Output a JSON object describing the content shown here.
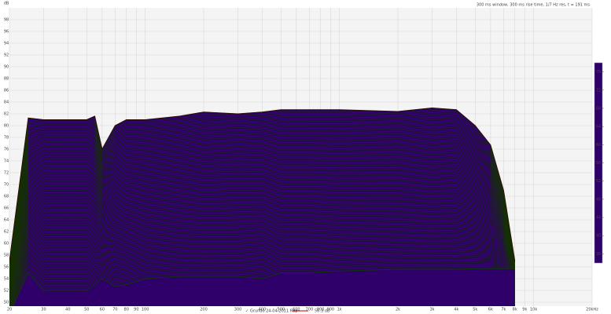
{
  "chart_data": {
    "type": "waterfall",
    "note_text": "300 ms window, 300 ms rise time, 1/7 Hz res, t = 191 ms",
    "y_label": "dB",
    "x": [
      20,
      25,
      30,
      40,
      50,
      55,
      60,
      70,
      80,
      100,
      150,
      200,
      300,
      400,
      500,
      700,
      1000,
      2000,
      3000,
      4000,
      5000,
      6000,
      7000,
      8000
    ],
    "series": [
      {
        "name": "Grundo 24-04-2011 Rbp",
        "level_label": "56.3 dB",
        "color": "#c00000",
        "values": [
          57,
          81.3,
          81,
          81,
          81,
          81.6,
          76,
          80,
          81,
          81,
          81.6,
          82.3,
          82,
          82.3,
          82.7,
          82.7,
          82.7,
          82.4,
          83,
          82.7,
          80,
          76.7,
          69,
          57
        ],
        "end_values": [
          48,
          55,
          52,
          52,
          52,
          53,
          54,
          52.7,
          53,
          54,
          54.4,
          54.4,
          54.4,
          54,
          55,
          55,
          55.3,
          55.6,
          55.6,
          55.6,
          55.7,
          55.7,
          55.7,
          55.7
        ]
      }
    ],
    "xlim": [
      20,
      20000
    ],
    "xscale": "log",
    "xticks": [
      20,
      30,
      40,
      50,
      60,
      70,
      80,
      90,
      100,
      200,
      300,
      400,
      500,
      600,
      700,
      800,
      900,
      {
        "value": 1000,
        "label": "1k"
      },
      {
        "value": 2000,
        "label": "2k"
      },
      {
        "value": 3000,
        "label": "3k"
      },
      {
        "value": 4000,
        "label": "4k"
      },
      {
        "value": 5000,
        "label": "5k"
      },
      {
        "value": 6000,
        "label": "6k"
      },
      {
        "value": 7000,
        "label": "7k"
      },
      {
        "value": 8000,
        "label": "8k"
      },
      {
        "value": 9000,
        "label": "9k"
      },
      {
        "value": 10000,
        "label": "10k"
      },
      {
        "value": 20000,
        "label": "20kHz"
      }
    ],
    "ylim": [
      50,
      100
    ],
    "yticks": [
      50,
      52,
      54,
      56,
      58,
      60,
      62,
      64,
      66,
      68,
      70,
      72,
      74,
      76,
      78,
      80,
      82,
      84,
      86,
      88,
      90,
      92,
      94,
      96,
      98
    ],
    "grid": true,
    "clim": [
      34,
      78
    ],
    "cticks": [
      36,
      40,
      44,
      48,
      52,
      56,
      60,
      64,
      68,
      72,
      76
    ],
    "colormap": [
      {
        "value": 34,
        "color": "#30006a"
      },
      {
        "value": 40,
        "color": "#1030c0"
      },
      {
        "value": 46,
        "color": "#00a0b0"
      },
      {
        "value": 54,
        "color": "#00b000"
      },
      {
        "value": 62,
        "color": "#9ad000"
      },
      {
        "value": 68,
        "color": "#f0e000"
      },
      {
        "value": 72,
        "color": "#ff9000"
      },
      {
        "value": 78,
        "color": "#ff0000"
      }
    ]
  }
}
